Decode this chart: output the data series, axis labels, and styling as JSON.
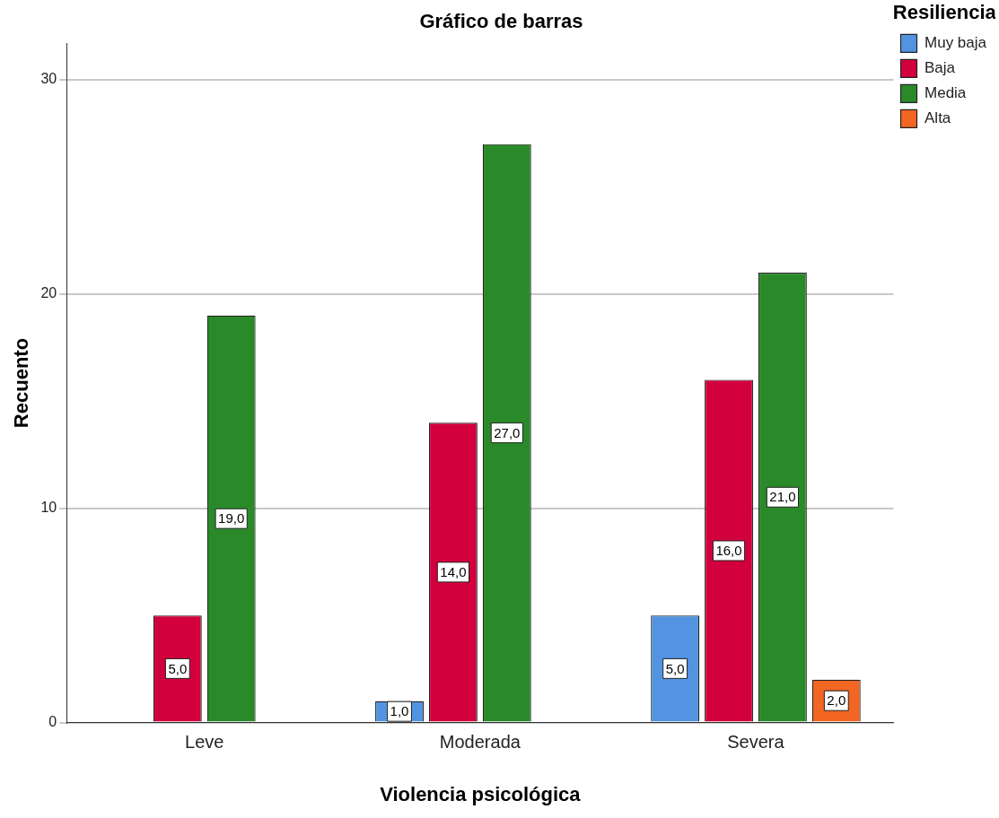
{
  "chart_data": {
    "type": "bar",
    "title": "Gráfico de barras",
    "xlabel": "Violencia psicológica",
    "ylabel": "Recuento",
    "legend_title": "Resiliencia",
    "categories": [
      "Leve",
      "Moderada",
      "Severa"
    ],
    "series": [
      {
        "name": "Muy baja",
        "color": "#5294e2",
        "values": [
          null,
          1,
          5
        ],
        "value_labels": [
          null,
          "1,0",
          "5,0"
        ]
      },
      {
        "name": "Baja",
        "color": "#d2003c",
        "values": [
          5,
          14,
          16
        ],
        "value_labels": [
          "5,0",
          "14,0",
          "16,0"
        ]
      },
      {
        "name": "Media",
        "color": "#2a8a2a",
        "values": [
          19,
          27,
          21
        ],
        "value_labels": [
          "19,0",
          "27,0",
          "21,0"
        ]
      },
      {
        "name": "Alta",
        "color": "#f26522",
        "values": [
          null,
          null,
          2
        ],
        "value_labels": [
          null,
          null,
          "2,0"
        ]
      }
    ],
    "ylim": [
      0,
      31.7
    ],
    "yticks": [
      0,
      10,
      20,
      30
    ],
    "grid": "y",
    "legend": "top right"
  }
}
